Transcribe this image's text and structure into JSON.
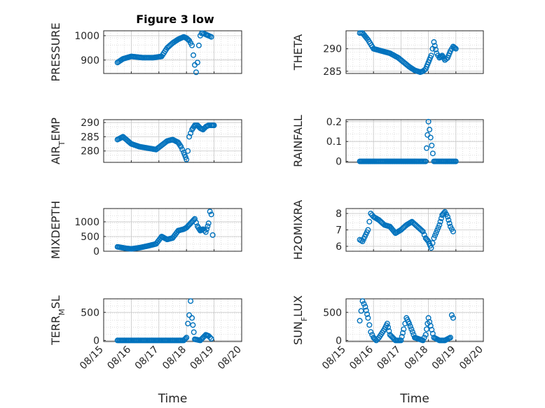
{
  "figure_title": "Figure 3 low",
  "x_ticks": [
    "08/15",
    "08/16",
    "08/17",
    "08/18",
    "08/19",
    "08/20"
  ],
  "x_label": "Time",
  "marker_color": "#0072BD",
  "chart_data": [
    {
      "type": "scatter",
      "panel": "PRESSURE",
      "title": "Figure 3 low",
      "ylabel": "PRESSURE",
      "ylabel_sub": "",
      "ylabel_after": "",
      "ylim": [
        845,
        1020
      ],
      "yticks": [
        900,
        1000
      ],
      "xlabel": "",
      "x": [
        15.5,
        15.7,
        16.0,
        16.4,
        16.8,
        17.1,
        17.3,
        17.5,
        17.7,
        17.9,
        18.0,
        18.1,
        18.2,
        18.25,
        18.3,
        18.35,
        18.4,
        18.45,
        18.5,
        18.55,
        18.6,
        18.7,
        18.8,
        18.9
      ],
      "y": [
        890,
        905,
        915,
        910,
        910,
        915,
        950,
        970,
        985,
        995,
        990,
        980,
        960,
        920,
        880,
        850,
        890,
        960,
        1000,
        1010,
        1010,
        1005,
        1000,
        995
      ]
    },
    {
      "type": "scatter",
      "panel": "THETA",
      "ylabel": "THETA",
      "ylabel_sub": "",
      "ylabel_after": "",
      "ylim": [
        284.5,
        294
      ],
      "yticks": [
        285,
        290
      ],
      "xlabel": "",
      "x": [
        15.5,
        15.6,
        15.8,
        16.0,
        16.3,
        16.6,
        16.9,
        17.1,
        17.3,
        17.5,
        17.7,
        17.8,
        17.9,
        18.0,
        18.1,
        18.2,
        18.3,
        18.4,
        18.5,
        18.6,
        18.7,
        18.8,
        18.9,
        19.0
      ],
      "y": [
        293.5,
        293.5,
        292,
        290,
        289.5,
        289,
        288,
        287,
        286,
        285.2,
        284.8,
        285,
        285.5,
        287,
        288.5,
        291.5,
        289,
        288,
        288.5,
        287.5,
        288,
        289.5,
        290.5,
        290
      ]
    },
    {
      "type": "scatter",
      "panel": "AIR_TEMP",
      "ylabel": "AIR",
      "ylabel_sub": "T",
      "ylabel_after": "EMP",
      "ylim": [
        276,
        291
      ],
      "yticks": [
        280,
        285,
        290
      ],
      "xlabel": "",
      "x": [
        15.5,
        15.7,
        16.0,
        16.3,
        16.6,
        16.9,
        17.1,
        17.3,
        17.5,
        17.7,
        17.8,
        17.9,
        18.0,
        18.05,
        18.1,
        18.2,
        18.3,
        18.4,
        18.5,
        18.6,
        18.7,
        18.8,
        18.9,
        19.0
      ],
      "y": [
        284,
        285,
        282.5,
        281.5,
        281,
        280.5,
        282,
        283.5,
        284,
        283,
        281.5,
        279.5,
        277,
        280,
        285,
        287.5,
        289,
        289,
        288,
        287.5,
        288.5,
        289,
        289,
        289
      ]
    },
    {
      "type": "scatter",
      "panel": "RAINFALL",
      "ylabel": "RAINFALL",
      "ylabel_sub": "",
      "ylabel_after": "",
      "ylim": [
        -0.005,
        0.21
      ],
      "yticks": [
        0,
        0.1,
        0.2
      ],
      "xlabel": "",
      "x": [
        15.5,
        15.8,
        16.1,
        16.4,
        16.7,
        17.0,
        17.3,
        17.6,
        17.9,
        18.0,
        18.2,
        18.4,
        18.6,
        18.8,
        19.0
      ],
      "y": [
        0,
        0,
        0,
        0,
        0,
        0,
        0,
        0,
        0,
        0.2,
        0,
        0,
        0,
        0,
        0
      ]
    },
    {
      "type": "scatter",
      "panel": "MIXDEPTH",
      "ylabel": "MIXDEPTH",
      "ylabel_sub": "",
      "ylabel_after": "",
      "ylim": [
        0,
        1450
      ],
      "yticks": [
        0,
        500,
        1000
      ],
      "xlabel": "",
      "x": [
        15.5,
        15.8,
        16.0,
        16.3,
        16.6,
        16.9,
        17.1,
        17.3,
        17.5,
        17.7,
        17.9,
        18.0,
        18.2,
        18.3,
        18.4,
        18.5,
        18.6,
        18.7,
        18.8,
        18.85,
        18.9,
        18.95
      ],
      "y": [
        150,
        100,
        80,
        120,
        180,
        250,
        500,
        400,
        450,
        700,
        750,
        800,
        1000,
        1100,
        850,
        700,
        750,
        650,
        950,
        1350,
        1250,
        550
      ]
    },
    {
      "type": "scatter",
      "panel": "H2OMIXRA",
      "ylabel": "H2OMIXRA",
      "ylabel_sub": "",
      "ylabel_after": "",
      "ylim": [
        5.7,
        8.3
      ],
      "yticks": [
        6,
        7,
        8
      ],
      "xlabel": "",
      "x": [
        15.5,
        15.6,
        15.8,
        15.9,
        16.0,
        16.2,
        16.4,
        16.6,
        16.8,
        17.0,
        17.2,
        17.4,
        17.6,
        17.8,
        17.9,
        18.0,
        18.1,
        18.2,
        18.4,
        18.5,
        18.6,
        18.7,
        18.8,
        18.9
      ],
      "y": [
        6.4,
        6.3,
        7.0,
        8.0,
        7.8,
        7.6,
        7.3,
        7.2,
        6.8,
        7.0,
        7.3,
        7.5,
        7.2,
        6.9,
        6.5,
        6.3,
        5.9,
        6.5,
        7.3,
        7.9,
        8.1,
        7.8,
        7.2,
        6.9
      ]
    },
    {
      "type": "scatter",
      "panel": "TERR_MSL",
      "ylabel": "TERR",
      "ylabel_sub": "M",
      "ylabel_after": "SL",
      "ylim": [
        -20,
        740
      ],
      "yticks": [
        0,
        500
      ],
      "xlabel": "Time",
      "x": [
        15.5,
        15.9,
        16.3,
        16.7,
        17.1,
        17.5,
        17.9,
        18.0,
        18.05,
        18.1,
        18.15,
        18.2,
        18.3,
        18.5,
        18.6,
        18.7,
        18.8,
        18.9
      ],
      "y": [
        0,
        0,
        0,
        0,
        0,
        0,
        0,
        50,
        300,
        450,
        700,
        400,
        20,
        0,
        50,
        100,
        80,
        30
      ]
    },
    {
      "type": "scatter",
      "panel": "SUN_FLUX",
      "ylabel": "SUN",
      "ylabel_sub": "F",
      "ylabel_after": "LUX",
      "ylim": [
        -20,
        740
      ],
      "yticks": [
        0,
        500
      ],
      "xlabel": "Time",
      "x": [
        15.5,
        15.6,
        15.7,
        15.8,
        15.9,
        16.0,
        16.1,
        16.2,
        16.4,
        16.5,
        16.6,
        16.8,
        17.0,
        17.1,
        17.2,
        17.3,
        17.5,
        17.8,
        17.9,
        18.0,
        18.2,
        18.4,
        18.6,
        18.8,
        18.85,
        18.9
      ],
      "y": [
        350,
        700,
        600,
        400,
        150,
        50,
        0,
        50,
        200,
        300,
        100,
        0,
        0,
        200,
        400,
        300,
        50,
        0,
        100,
        400,
        50,
        0,
        0,
        50,
        450,
        400
      ]
    }
  ]
}
